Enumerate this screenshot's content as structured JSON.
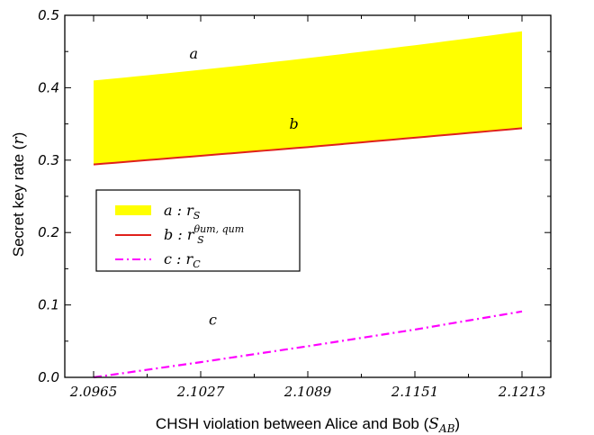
{
  "chart_data": {
    "type": "area",
    "xlabel": "CHSH violation between Alice and Bob (",
    "xlabel_math": "S",
    "xlabel_sub": "AB",
    "xlabel_close": ")",
    "ylabel": "Secret key rate (",
    "ylabel_math": "r",
    "ylabel_close": ")",
    "xlim": [
      2.0965,
      2.1213
    ],
    "ylim": [
      0.0,
      0.5
    ],
    "xticks": [
      "2.0965",
      "2.1027",
      "2.1089",
      "2.1151",
      "2.1213"
    ],
    "yticks": [
      "0.0",
      "0.1",
      "0.2",
      "0.3",
      "0.4",
      "0.5"
    ],
    "legend_position": "center-left",
    "series": [
      {
        "name": "a",
        "legend_suffix": "r_S",
        "style": "band",
        "color": "#ffff00",
        "x": [
          2.0965,
          2.1213
        ],
        "upper": [
          0.41,
          0.478
        ],
        "lower": [
          0.294,
          0.344
        ]
      },
      {
        "name": "b",
        "legend_suffix": "r_S^{θ_um, q_um}",
        "style": "solid",
        "color": "#e0201b",
        "x": [
          2.0965,
          2.1027,
          2.1089,
          2.1151,
          2.1213
        ],
        "y": [
          0.294,
          0.306,
          0.318,
          0.331,
          0.344
        ]
      },
      {
        "name": "c",
        "legend_suffix": "r_C",
        "style": "dashdot",
        "color": "#ff00ff",
        "x": [
          2.0965,
          2.1027,
          2.1089,
          2.1151,
          2.1213
        ],
        "y": [
          0.0,
          0.021,
          0.043,
          0.066,
          0.091
        ]
      }
    ],
    "annotations": [
      {
        "text": "a",
        "x": 2.1023,
        "y": 0.44
      },
      {
        "text": "b",
        "x": 2.1081,
        "y": 0.343
      },
      {
        "text": "c",
        "x": 2.1034,
        "y": 0.073
      }
    ]
  }
}
